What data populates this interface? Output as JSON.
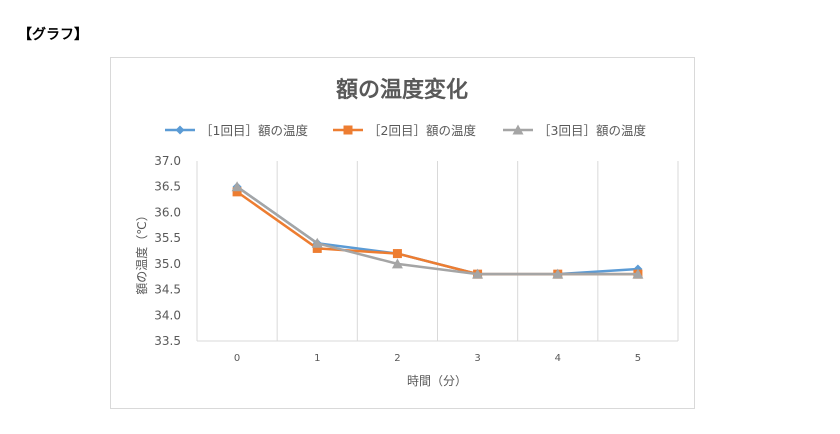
{
  "page": {
    "heading": "【グラフ】"
  },
  "chart_data": {
    "type": "line",
    "title": "額の温度変化",
    "xlabel": "時間（分）",
    "ylabel": "額の温度（℃）",
    "x": [
      0,
      1,
      2,
      3,
      4,
      5
    ],
    "categories": [
      "0",
      "1",
      "2",
      "3",
      "4",
      "5"
    ],
    "ylim": [
      33.5,
      37.0
    ],
    "ytick_step": 0.5,
    "ytick_labels": [
      "33.5",
      "34.0",
      "34.5",
      "35.0",
      "35.5",
      "36.0",
      "36.5",
      "37.0"
    ],
    "grid": "vertical",
    "legend_position": "top",
    "series": [
      {
        "name": "［1回目］額の温度",
        "color": "#5b9bd5",
        "marker": "diamond",
        "values": [
          36.5,
          35.4,
          35.2,
          34.8,
          34.8,
          34.9
        ]
      },
      {
        "name": "［2回目］額の温度",
        "color": "#ed7d31",
        "marker": "square",
        "values": [
          36.4,
          35.3,
          35.2,
          34.8,
          34.8,
          34.8
        ]
      },
      {
        "name": "［3回目］額の温度",
        "color": "#a5a5a5",
        "marker": "triangle",
        "values": [
          36.5,
          35.4,
          35.0,
          34.8,
          34.8,
          34.8
        ]
      }
    ]
  }
}
